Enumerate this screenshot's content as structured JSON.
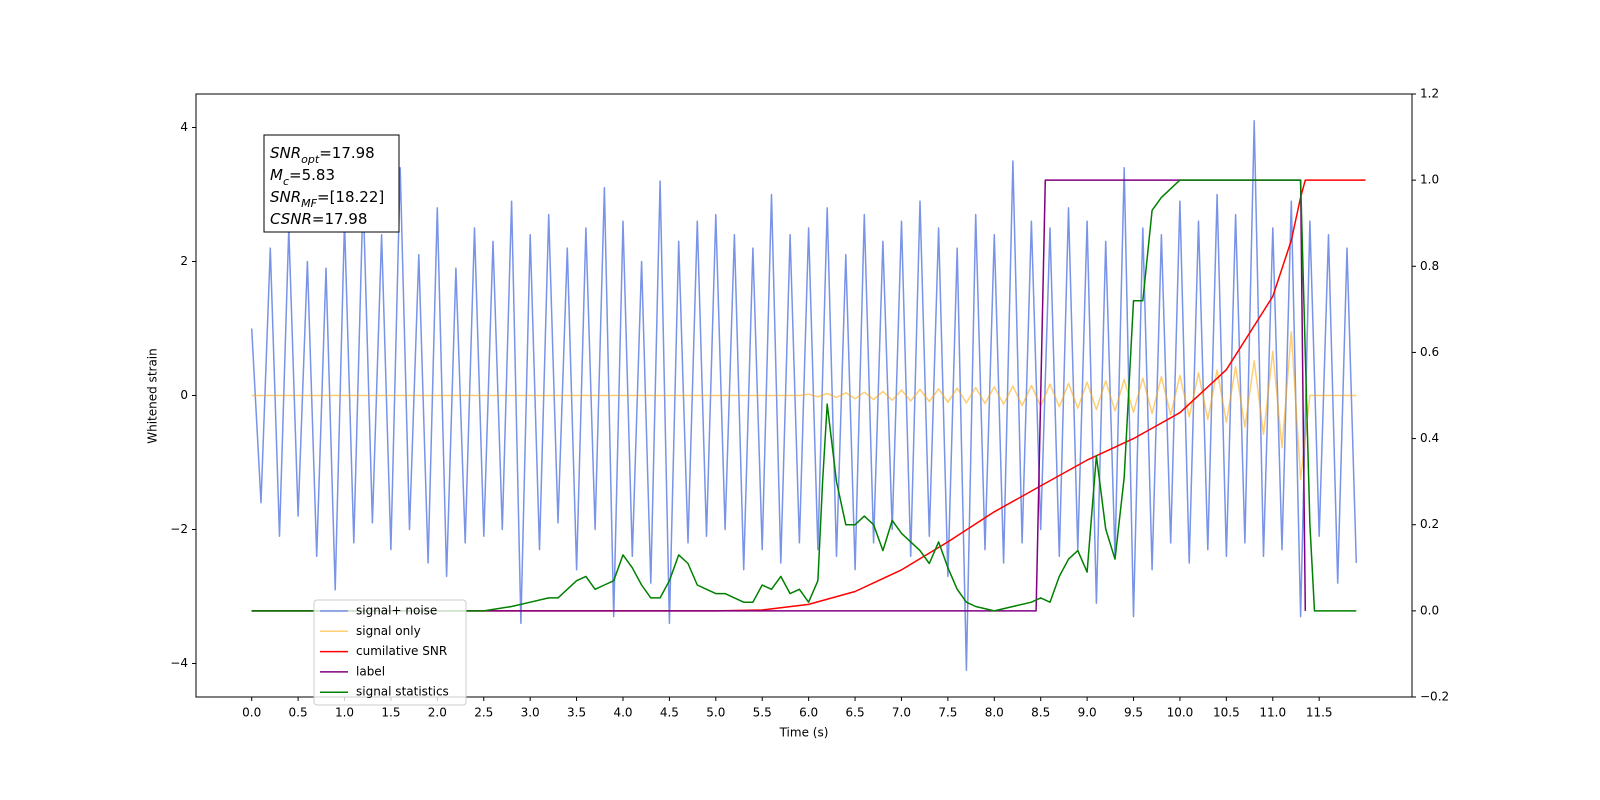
{
  "chart_data": {
    "type": "line",
    "xlabel": "Time (s)",
    "ylabel": "Whitened strain",
    "xlim": [
      -0.6,
      12.5
    ],
    "ylim": [
      -4.5,
      4.5
    ],
    "y2lim": [
      -0.2,
      1.2
    ],
    "xticks": [
      {
        "value": 0,
        "label": "0.0"
      },
      {
        "value": 0.5,
        "label": "0.5"
      },
      {
        "value": 1,
        "label": "1.0"
      },
      {
        "value": 1.5,
        "label": "1.5"
      },
      {
        "value": 2,
        "label": "2.0"
      },
      {
        "value": 2.5,
        "label": "2.5"
      },
      {
        "value": 3,
        "label": "3.0"
      },
      {
        "value": 3.5,
        "label": "3.5"
      },
      {
        "value": 4,
        "label": "4.0"
      },
      {
        "value": 4.5,
        "label": "4.5"
      },
      {
        "value": 5,
        "label": "5.0"
      },
      {
        "value": 5.5,
        "label": "5.5"
      },
      {
        "value": 6,
        "label": "6.0"
      },
      {
        "value": 6.5,
        "label": "6.5"
      },
      {
        "value": 7,
        "label": "7.0"
      },
      {
        "value": 7.5,
        "label": "7.5"
      },
      {
        "value": 8,
        "label": "8.0"
      },
      {
        "value": 8.5,
        "label": "8.5"
      },
      {
        "value": 9,
        "label": "9.0"
      },
      {
        "value": 9.5,
        "label": "9.5"
      },
      {
        "value": 10,
        "label": "10.0"
      },
      {
        "value": 10.5,
        "label": "10.5"
      },
      {
        "value": 11,
        "label": "11.0"
      },
      {
        "value": 11.5,
        "label": "11.5"
      }
    ],
    "yticks": [
      {
        "value": -4,
        "label": "−4"
      },
      {
        "value": -2,
        "label": "−2"
      },
      0,
      2,
      4
    ],
    "y2ticks": [
      {
        "value": -0.2,
        "label": "−0.2"
      },
      {
        "value": 0,
        "label": "0.0"
      },
      {
        "value": 0.2,
        "label": "0.2"
      },
      {
        "value": 0.4,
        "label": "0.4"
      },
      {
        "value": 0.6,
        "label": "0.6"
      },
      {
        "value": 0.8,
        "label": "0.8"
      },
      {
        "value": 1,
        "label": "1.0"
      },
      {
        "value": 1.2,
        "label": "1.2"
      }
    ],
    "legend": "lower left",
    "annotations": [
      {
        "base": "SNR",
        "sub": "opt",
        "text": "=17.98"
      },
      {
        "base": "M",
        "sub": "c",
        "text": "=5.83"
      },
      {
        "base": "SNR",
        "sub": "MF",
        "text": "=[18.22]"
      },
      {
        "base": "CSNR",
        "sub": "",
        "text": "=17.98"
      }
    ],
    "series": [
      {
        "name": "signal+ noise",
        "color": "#7893e8",
        "x": [
          0,
          0.1,
          0.2,
          0.3,
          0.4,
          0.5,
          0.6,
          0.7,
          0.8,
          0.9,
          1,
          1.1,
          1.2,
          1.3,
          1.4,
          1.5,
          1.6,
          1.7,
          1.8,
          1.9,
          2,
          2.1,
          2.2,
          2.3,
          2.4,
          2.5,
          2.6,
          2.7,
          2.8,
          2.9,
          3,
          3.1,
          3.2,
          3.3,
          3.4,
          3.5,
          3.6,
          3.7,
          3.8,
          3.9,
          4,
          4.1,
          4.2,
          4.3,
          4.4,
          4.5,
          4.6,
          4.7,
          4.8,
          4.9,
          5,
          5.1,
          5.2,
          5.3,
          5.4,
          5.5,
          5.6,
          5.7,
          5.8,
          5.9,
          6,
          6.1,
          6.2,
          6.3,
          6.4,
          6.5,
          6.6,
          6.7,
          6.8,
          6.9,
          7,
          7.1,
          7.2,
          7.3,
          7.4,
          7.5,
          7.6,
          7.7,
          7.8,
          7.9,
          8,
          8.1,
          8.2,
          8.3,
          8.4,
          8.5,
          8.6,
          8.7,
          8.8,
          8.9,
          9,
          9.1,
          9.2,
          9.3,
          9.4,
          9.5,
          9.6,
          9.7,
          9.8,
          9.9,
          10,
          10.1,
          10.2,
          10.3,
          10.4,
          10.5,
          10.6,
          10.7,
          10.8,
          10.9,
          11,
          11.1,
          11.2,
          11.3,
          11.4,
          11.5,
          11.6,
          11.7,
          11.8,
          11.9
        ],
        "values": [
          1.0,
          -1.6,
          2.2,
          -2.1,
          2.5,
          -1.8,
          2.0,
          -2.4,
          1.9,
          -2.9,
          2.6,
          -2.2,
          3.0,
          -1.9,
          2.4,
          -2.3,
          3.4,
          -2.0,
          2.1,
          -2.5,
          2.8,
          -2.7,
          1.9,
          -2.2,
          2.5,
          -2.1,
          2.3,
          -2.0,
          2.9,
          -3.4,
          2.4,
          -2.3,
          2.7,
          -1.9,
          2.2,
          -2.6,
          2.5,
          -2.0,
          3.1,
          -3.3,
          2.6,
          -2.4,
          2.0,
          -2.8,
          3.2,
          -3.4,
          2.3,
          -2.2,
          2.6,
          -2.1,
          2.7,
          -2.0,
          2.4,
          -2.6,
          2.2,
          -2.3,
          3.0,
          -2.5,
          2.4,
          -2.2,
          2.5,
          -2.3,
          2.8,
          -2.4,
          2.1,
          -2.6,
          2.7,
          -2.2,
          2.3,
          -2.0,
          2.6,
          -2.4,
          2.9,
          -2.1,
          2.5,
          -2.7,
          2.2,
          -4.1,
          2.7,
          -2.3,
          2.4,
          -2.5,
          3.5,
          -2.2,
          2.6,
          -2.0,
          2.5,
          -2.4,
          2.8,
          -2.3,
          2.6,
          -3.1,
          2.3,
          -2.4,
          3.4,
          -3.3,
          2.5,
          -2.6,
          2.4,
          -2.2,
          2.9,
          -2.5,
          2.6,
          -2.3,
          3.0,
          -2.4,
          2.7,
          -2.2,
          4.1,
          -2.4,
          2.5,
          -2.3,
          2.9,
          -3.3,
          2.6,
          -2.1,
          2.4,
          -2.8,
          2.2,
          -2.5
        ]
      },
      {
        "name": "signal only",
        "color": "#ffa500",
        "x": [
          0,
          0.1,
          0.2,
          0.3,
          0.4,
          0.5,
          0.6,
          0.7,
          0.8,
          0.9,
          1,
          1.1,
          1.2,
          1.3,
          1.4,
          1.5,
          1.6,
          1.7,
          1.8,
          1.9,
          2,
          2.1,
          2.2,
          2.3,
          2.4,
          2.5,
          2.6,
          2.7,
          2.8,
          2.9,
          3,
          3.1,
          3.2,
          3.3,
          3.4,
          3.5,
          3.6,
          3.7,
          3.8,
          3.9,
          4,
          4.1,
          4.2,
          4.3,
          4.4,
          4.5,
          4.6,
          4.7,
          4.8,
          4.9,
          5,
          5.1,
          5.2,
          5.3,
          5.4,
          5.5,
          5.6,
          5.7,
          5.8,
          5.9,
          6,
          6.1,
          6.2,
          6.3,
          6.4,
          6.5,
          6.6,
          6.7,
          6.8,
          6.9,
          7,
          7.1,
          7.2,
          7.3,
          7.4,
          7.5,
          7.6,
          7.7,
          7.8,
          7.9,
          8,
          8.1,
          8.2,
          8.3,
          8.4,
          8.5,
          8.6,
          8.7,
          8.8,
          8.9,
          9,
          9.1,
          9.2,
          9.3,
          9.4,
          9.5,
          9.6,
          9.7,
          9.8,
          9.9,
          10,
          10.1,
          10.2,
          10.3,
          10.4,
          10.5,
          10.6,
          10.7,
          10.8,
          10.9,
          11,
          11.1,
          11.2,
          11.3,
          11.4,
          11.5,
          11.6,
          11.7,
          11.8,
          11.9
        ],
        "values": [
          0,
          0,
          0,
          0,
          0,
          0,
          0,
          0,
          0,
          0,
          0,
          0,
          0,
          0,
          0,
          0,
          0,
          0,
          0,
          0,
          0,
          0,
          0,
          0,
          0,
          0,
          0,
          0,
          0,
          0,
          0,
          0,
          0,
          0,
          0,
          0,
          0,
          0,
          0,
          0,
          0,
          0,
          0,
          0,
          0,
          0,
          0,
          0,
          0,
          0,
          0,
          0,
          0,
          0,
          0,
          0,
          0,
          0,
          0,
          0,
          0.02,
          -0.02,
          0.03,
          -0.03,
          0.04,
          -0.05,
          0.05,
          -0.06,
          0.06,
          -0.07,
          0.08,
          -0.08,
          0.09,
          -0.09,
          0.1,
          -0.1,
          0.11,
          -0.11,
          0.12,
          -0.12,
          0.13,
          -0.13,
          0.14,
          -0.15,
          0.15,
          -0.16,
          0.17,
          -0.17,
          0.18,
          -0.19,
          0.2,
          -0.21,
          0.22,
          -0.23,
          0.24,
          -0.25,
          0.26,
          -0.27,
          0.28,
          -0.29,
          0.3,
          -0.32,
          0.34,
          -0.36,
          0.38,
          -0.4,
          0.43,
          -0.47,
          0.52,
          -0.58,
          0.66,
          -0.78,
          0.95,
          -1.25,
          0,
          0,
          0,
          0,
          0,
          0
        ]
      },
      {
        "name": "cumilative SNR",
        "color": "#ff0000",
        "axis": "y2",
        "x": [
          0,
          5.0,
          5.5,
          6.0,
          6.5,
          7.0,
          7.5,
          8.0,
          8.5,
          9.0,
          9.5,
          10.0,
          10.5,
          11.0,
          11.2,
          11.3,
          11.35,
          12.0
        ],
        "values": [
          0,
          0,
          0.002,
          0.015,
          0.045,
          0.095,
          0.16,
          0.23,
          0.29,
          0.35,
          0.4,
          0.46,
          0.56,
          0.73,
          0.86,
          0.96,
          1.0,
          1.0
        ]
      },
      {
        "name": "label",
        "color": "#800080",
        "axis": "y2",
        "x": [
          0,
          8.45,
          8.55,
          11.3,
          11.35
        ],
        "values": [
          0,
          0,
          1,
          1,
          0
        ]
      },
      {
        "name": "signal statistics",
        "color": "#008000",
        "axis": "y2",
        "x": [
          0,
          2.5,
          2.8,
          3.0,
          3.2,
          3.3,
          3.4,
          3.5,
          3.6,
          3.7,
          3.8,
          3.9,
          4.0,
          4.1,
          4.2,
          4.3,
          4.4,
          4.5,
          4.6,
          4.7,
          4.8,
          4.9,
          5.0,
          5.1,
          5.2,
          5.3,
          5.4,
          5.5,
          5.6,
          5.7,
          5.8,
          5.9,
          6.0,
          6.1,
          6.15,
          6.2,
          6.3,
          6.4,
          6.5,
          6.6,
          6.7,
          6.8,
          6.9,
          7.0,
          7.1,
          7.2,
          7.3,
          7.4,
          7.5,
          7.6,
          7.7,
          7.8,
          8.0,
          8.2,
          8.4,
          8.5,
          8.6,
          8.7,
          8.8,
          8.9,
          9.0,
          9.1,
          9.2,
          9.3,
          9.4,
          9.5,
          9.6,
          9.7,
          9.8,
          10.0,
          11.3,
          11.4,
          11.45,
          11.9
        ],
        "values": [
          0,
          0,
          0.01,
          0.02,
          0.03,
          0.03,
          0.05,
          0.07,
          0.08,
          0.05,
          0.06,
          0.07,
          0.13,
          0.1,
          0.06,
          0.03,
          0.03,
          0.07,
          0.13,
          0.11,
          0.06,
          0.05,
          0.04,
          0.04,
          0.03,
          0.02,
          0.02,
          0.06,
          0.05,
          0.08,
          0.04,
          0.05,
          0.02,
          0.07,
          0.3,
          0.48,
          0.3,
          0.2,
          0.2,
          0.22,
          0.2,
          0.14,
          0.21,
          0.18,
          0.16,
          0.14,
          0.11,
          0.16,
          0.1,
          0.05,
          0.02,
          0.01,
          0,
          0.01,
          0.02,
          0.03,
          0.02,
          0.08,
          0.12,
          0.14,
          0.09,
          0.36,
          0.19,
          0.12,
          0.31,
          0.72,
          0.72,
          0.93,
          0.96,
          1.0,
          1.0,
          0.2,
          0,
          0
        ]
      }
    ]
  }
}
